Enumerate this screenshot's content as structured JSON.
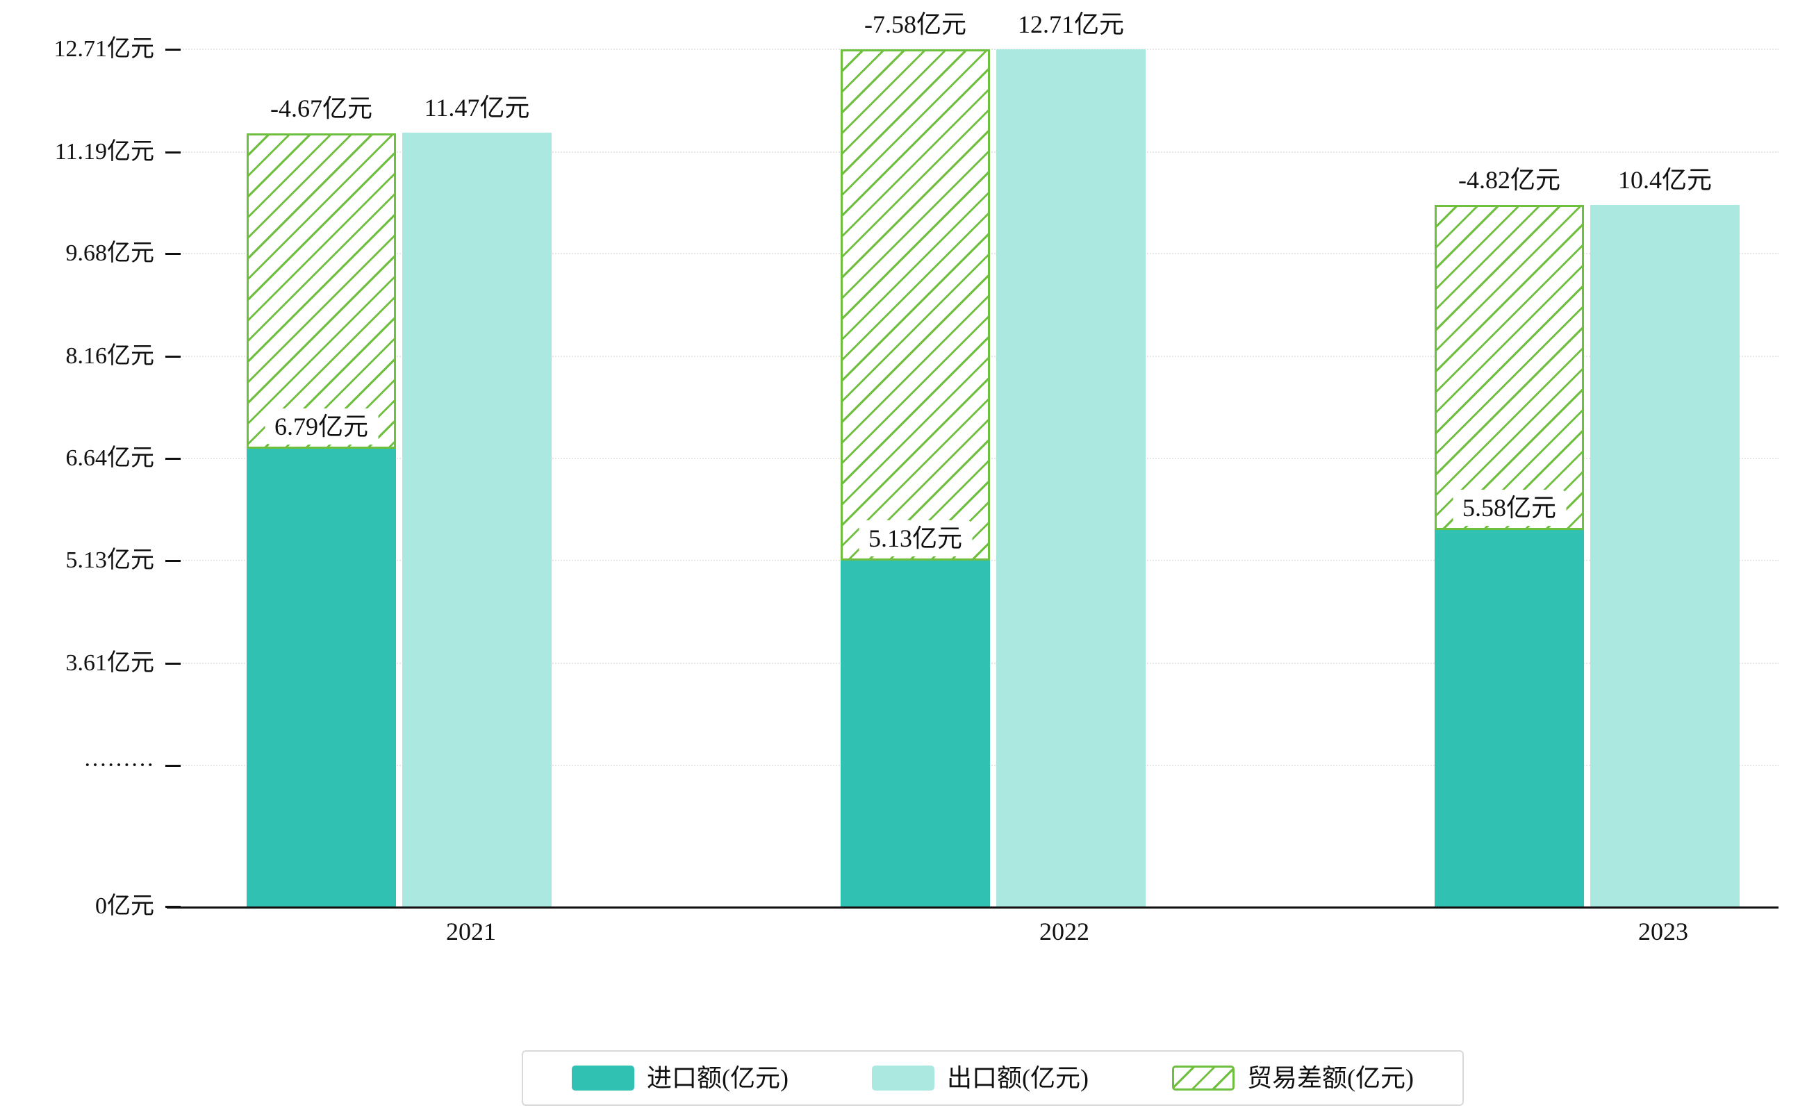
{
  "chart_data": {
    "type": "bar",
    "title": "",
    "categories": [
      "2021",
      "2022",
      "2023"
    ],
    "series": [
      {
        "name": "进口额(亿元)",
        "role": "import",
        "color": "#31c1b2",
        "values": [
          6.79,
          5.13,
          5.58
        ],
        "labels": [
          "6.79亿元",
          "5.13亿元",
          "5.58亿元"
        ]
      },
      {
        "name": "出口额(亿元)",
        "role": "export",
        "color": "#abe9e0",
        "values": [
          11.47,
          12.71,
          10.4
        ],
        "labels": [
          "11.47亿元",
          "12.71亿元",
          "10.4亿元"
        ]
      },
      {
        "name": "贸易差额(亿元)",
        "role": "trade-balance",
        "color": "#6fbf3f",
        "style": "hatched",
        "stacked_on": "进口额(亿元)",
        "values": [
          -4.67,
          -7.58,
          -4.82
        ],
        "labels": [
          "-4.67亿元",
          "-7.58亿元",
          "-4.82亿元"
        ]
      }
    ],
    "y_ticks": [
      {
        "value": 12.71,
        "label": "12.71亿元"
      },
      {
        "value": 11.19,
        "label": "11.19亿元"
      },
      {
        "value": 9.68,
        "label": "9.68亿元"
      },
      {
        "value": 8.16,
        "label": "8.16亿元"
      },
      {
        "value": 6.64,
        "label": "6.64亿元"
      },
      {
        "value": 5.13,
        "label": "5.13亿元"
      },
      {
        "value": 3.61,
        "label": "3.61亿元"
      },
      {
        "value": 2.09,
        "label": "·········"
      },
      {
        "value": 0,
        "label": "0亿元"
      }
    ],
    "ylim": [
      0,
      12.71
    ],
    "xlabel": "",
    "ylabel": "",
    "grid": true,
    "legend_position": "bottom"
  }
}
